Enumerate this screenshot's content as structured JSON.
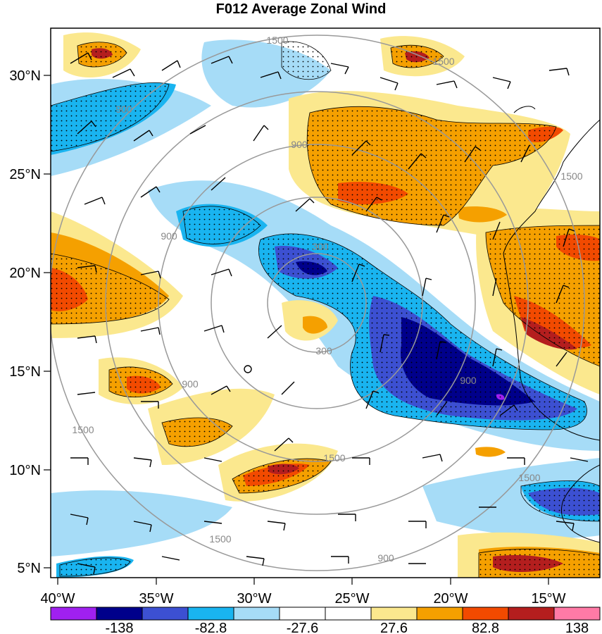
{
  "title": "F012 Average Zonal Wind",
  "lat_labels": [
    "30°N",
    "25°N",
    "20°N",
    "15°N",
    "10°N",
    "5°N"
  ],
  "lon_labels": [
    "40°W",
    "35°W",
    "30°W",
    "25°W",
    "20°W",
    "15°W"
  ],
  "colorbar": {
    "colors": [
      "#a020f0",
      "#00008b",
      "#3c50d2",
      "#19b4f0",
      "#a6dcf7",
      "#ffffff",
      "#ffffff",
      "#fbe88e",
      "#f5a000",
      "#f24a00",
      "#b41e1e",
      "#ff7aa6"
    ],
    "labels": [
      "-138",
      "-82.8",
      "-27.6",
      "27.6",
      "82.8",
      "138"
    ]
  },
  "contour_labels": [
    "1500",
    "1500",
    "900",
    "900",
    "300",
    "300",
    "900",
    "900",
    "900",
    "1500",
    "1500",
    "1500",
    "1500",
    "900",
    "1500"
  ]
}
